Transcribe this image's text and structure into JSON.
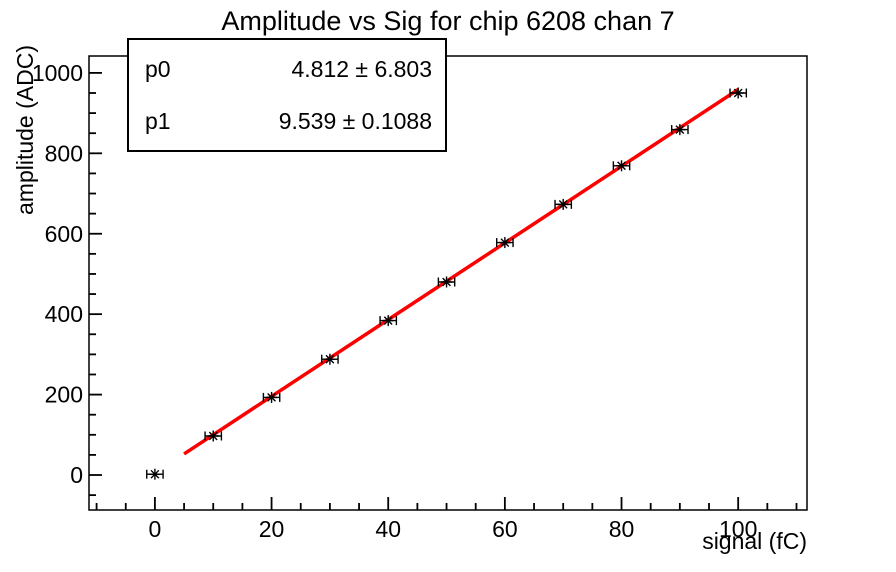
{
  "title": "Amplitude vs Sig for chip 6208 chan 7",
  "stats": {
    "rows": [
      {
        "param": "p0",
        "value": "4.812 ± 6.803"
      },
      {
        "param": "p1",
        "value": "9.539 ± 0.1088"
      }
    ]
  },
  "chart_data": {
    "type": "scatter",
    "title": "Amplitude vs Sig for chip 6208 chan 7",
    "xlabel": "signal (fC)",
    "ylabel": "amplitude (ADC)",
    "xlim": [
      -11.3,
      111.8
    ],
    "ylim": [
      -87,
      1042
    ],
    "x": [
      0,
      10,
      20,
      30,
      40,
      50,
      60,
      70,
      80,
      90,
      100
    ],
    "y": [
      2,
      97,
      193,
      288,
      384,
      480,
      578,
      673,
      769,
      859,
      950
    ],
    "x_error": 1.4,
    "x_major_ticks": [
      0,
      20,
      40,
      60,
      80,
      100
    ],
    "x_tick_labels": [
      "0",
      "20",
      "40",
      "60",
      "80",
      "100"
    ],
    "x_minor_step": 5,
    "y_major_ticks": [
      0,
      200,
      400,
      600,
      800,
      1000
    ],
    "y_tick_labels": [
      "0",
      "200",
      "400",
      "600",
      "800",
      "1000"
    ],
    "y_minor_step": 50,
    "grid": false,
    "legend": "none",
    "marker_style": "asterisk-with-x-error-bars",
    "fit": {
      "type": "linear",
      "p0": 4.812,
      "p1": 9.539,
      "x_min": 5,
      "x_max": 100
    },
    "colors": {
      "background": "#ffffff",
      "frame": "#000000",
      "marker": "#000000",
      "fit_line": "#ff0000",
      "text": "#000000"
    }
  }
}
